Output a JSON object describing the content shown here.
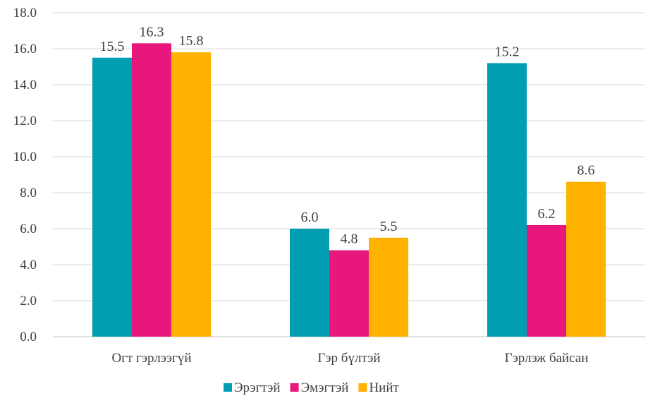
{
  "chart_data": {
    "type": "bar",
    "categories": [
      "Огт гэрлээгүй",
      "Гэр бүлтэй",
      "Гэрлэж байсан"
    ],
    "series": [
      {
        "name": "Эрэгтэй",
        "color": "#009EB0",
        "values": [
          15.5,
          6.0,
          15.2
        ],
        "labels": [
          "15.5",
          "6.0",
          "15.2"
        ]
      },
      {
        "name": "Эмэгтэй",
        "color": "#E8177B",
        "values": [
          16.3,
          4.8,
          6.2
        ],
        "labels": [
          "16.3",
          "4.8",
          "6.2"
        ]
      },
      {
        "name": "Нийт",
        "color": "#FFB300",
        "values": [
          15.8,
          5.5,
          8.6
        ],
        "labels": [
          "15.8",
          "5.5",
          "8.6"
        ]
      }
    ],
    "yticks": [
      "0.0",
      "2.0",
      "4.0",
      "6.0",
      "8.0",
      "10.0",
      "12.0",
      "14.0",
      "16.0",
      "18.0"
    ],
    "ylim": [
      0,
      18
    ],
    "grid": true,
    "legend_position": "bottom"
  }
}
